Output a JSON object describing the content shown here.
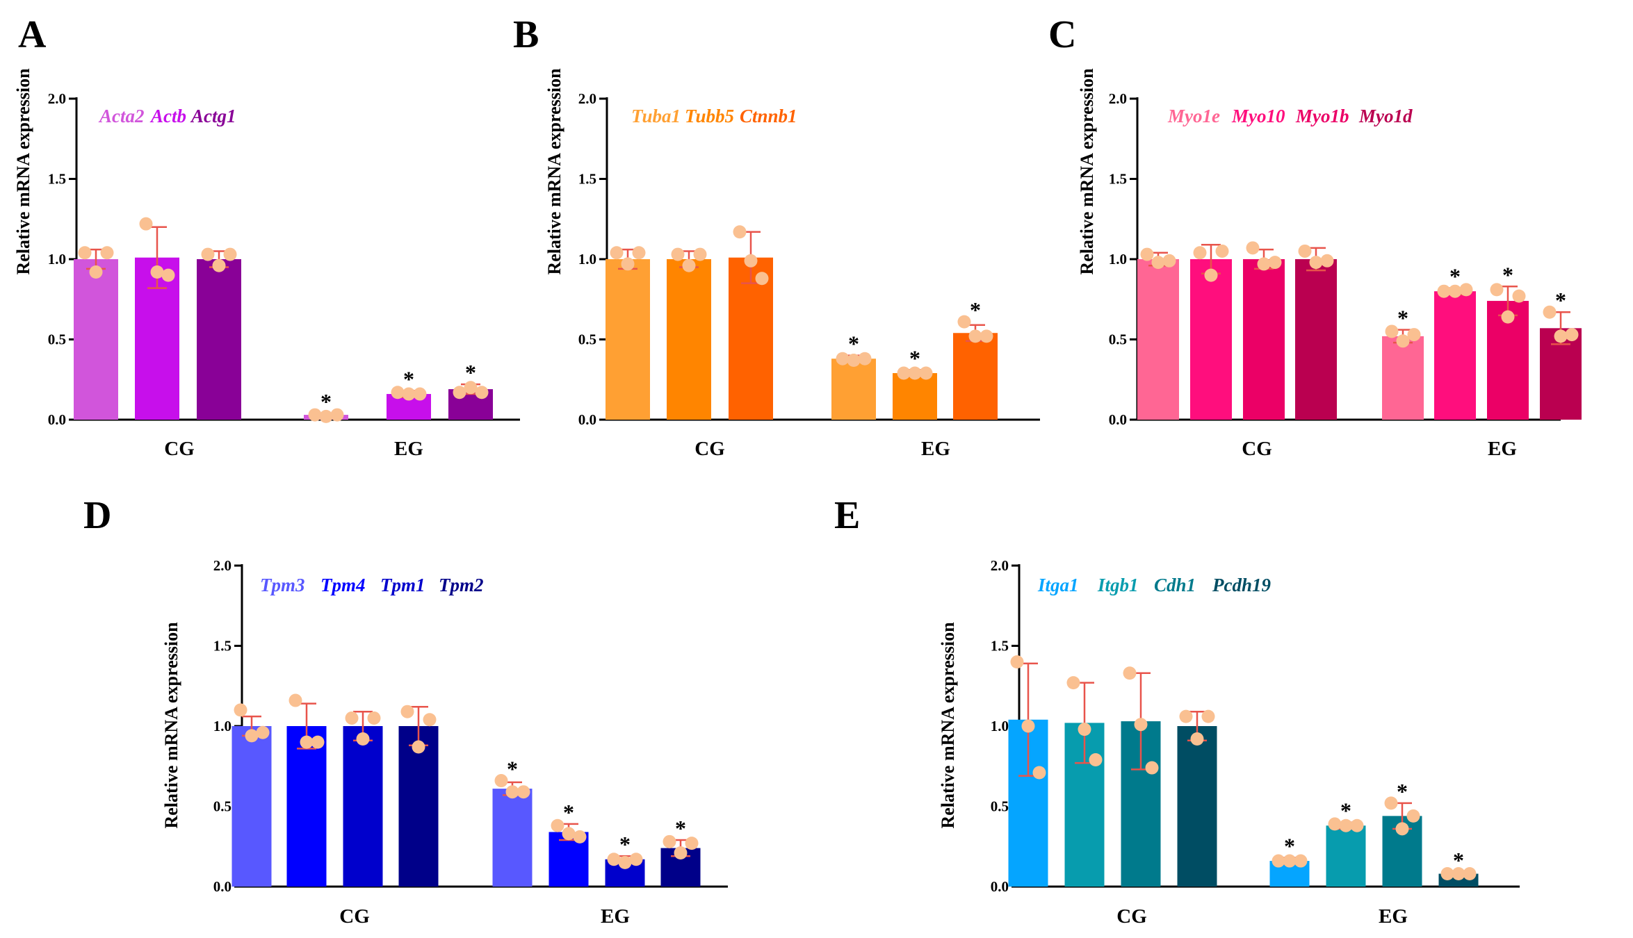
{
  "chart_data": [
    {
      "panel": "A",
      "type": "bar",
      "ylabel": "Relative mRNA expression",
      "ylim": [
        0,
        2.0
      ],
      "yticks": [
        "0.0",
        "0.5",
        "1.0",
        "1.5",
        "2.0"
      ],
      "categories": [
        "CG",
        "EG"
      ],
      "series": [
        {
          "name": "Acta2",
          "color": "#D155DB",
          "values": [
            1.0,
            0.03
          ],
          "errors": [
            0.06,
            0.01
          ],
          "points": [
            [
              1.04,
              0.92,
              1.04
            ],
            [
              0.03,
              0.02,
              0.03
            ]
          ],
          "significant": [
            false,
            true
          ]
        },
        {
          "name": "Actb",
          "color": "#C70FEB",
          "values": [
            1.01,
            0.16
          ],
          "errors": [
            0.19,
            0.02
          ],
          "points": [
            [
              1.22,
              0.92,
              0.9
            ],
            [
              0.17,
              0.16,
              0.16
            ]
          ],
          "significant": [
            false,
            true
          ]
        },
        {
          "name": "Actg1",
          "color": "#890197",
          "values": [
            1.0,
            0.19
          ],
          "errors": [
            0.05,
            0.03
          ],
          "points": [
            [
              1.03,
              0.96,
              1.03
            ],
            [
              0.17,
              0.2,
              0.17
            ]
          ],
          "significant": [
            false,
            true
          ]
        }
      ]
    },
    {
      "panel": "B",
      "type": "bar",
      "ylabel": "Relative mRNA expression",
      "ylim": [
        0,
        2.0
      ],
      "yticks": [
        "0.0",
        "0.5",
        "1.0",
        "1.5",
        "2.0"
      ],
      "categories": [
        "CG",
        "EG"
      ],
      "series": [
        {
          "name": "Tuba1",
          "color": "#FFA033",
          "values": [
            1.0,
            0.38
          ],
          "errors": [
            0.06,
            0.02
          ],
          "points": [
            [
              1.04,
              0.97,
              1.04
            ],
            [
              0.38,
              0.37,
              0.38
            ]
          ],
          "significant": [
            false,
            true
          ]
        },
        {
          "name": "Tubb5",
          "color": "#FF8500",
          "values": [
            1.0,
            0.29
          ],
          "errors": [
            0.05,
            0.02
          ],
          "points": [
            [
              1.03,
              0.96,
              1.03
            ],
            [
              0.29,
              0.29,
              0.29
            ]
          ],
          "significant": [
            false,
            true
          ]
        },
        {
          "name": "Ctnnb1",
          "color": "#FF6200",
          "values": [
            1.01,
            0.54
          ],
          "errors": [
            0.16,
            0.05
          ],
          "points": [
            [
              1.17,
              0.99,
              0.88
            ],
            [
              0.61,
              0.52,
              0.52
            ]
          ],
          "significant": [
            false,
            true
          ]
        }
      ]
    },
    {
      "panel": "C",
      "type": "bar",
      "ylabel": "Relative mRNA expression",
      "ylim": [
        0,
        2.0
      ],
      "yticks": [
        "0.0",
        "0.5",
        "1.0",
        "1.5",
        "2.0"
      ],
      "categories": [
        "CG",
        "EG"
      ],
      "series": [
        {
          "name": "Myo1e",
          "color": "#FF6694",
          "values": [
            1.0,
            0.52
          ],
          "errors": [
            0.04,
            0.04
          ],
          "points": [
            [
              1.03,
              0.98,
              0.99
            ],
            [
              0.55,
              0.49,
              0.53
            ]
          ],
          "significant": [
            false,
            true
          ]
        },
        {
          "name": "Myo10",
          "color": "#FF0E7D",
          "values": [
            1.0,
            0.8
          ],
          "errors": [
            0.09,
            0.02
          ],
          "points": [
            [
              1.04,
              0.9,
              1.05
            ],
            [
              0.8,
              0.8,
              0.81
            ]
          ],
          "significant": [
            false,
            true
          ]
        },
        {
          "name": "Myo1b",
          "color": "#EB0066",
          "values": [
            1.0,
            0.74
          ],
          "errors": [
            0.06,
            0.09
          ],
          "points": [
            [
              1.07,
              0.97,
              0.98
            ],
            [
              0.81,
              0.64,
              0.77
            ]
          ],
          "significant": [
            false,
            true
          ]
        },
        {
          "name": "Myo1d",
          "color": "#BA0050",
          "values": [
            1.0,
            0.57
          ],
          "errors": [
            0.07,
            0.1
          ],
          "points": [
            [
              1.05,
              0.98,
              0.99
            ],
            [
              0.67,
              0.52,
              0.53
            ]
          ],
          "significant": [
            false,
            true
          ]
        }
      ]
    },
    {
      "panel": "D",
      "type": "bar",
      "ylabel": "Relative mRNA expression",
      "ylim": [
        0,
        2.0
      ],
      "yticks": [
        "0.0",
        "0.5",
        "1.0",
        "1.5",
        "2.0"
      ],
      "categories": [
        "CG",
        "EG"
      ],
      "series": [
        {
          "name": "Tpm3",
          "color": "#5858FF",
          "values": [
            1.0,
            0.61
          ],
          "errors": [
            0.06,
            0.04
          ],
          "points": [
            [
              1.1,
              0.94,
              0.96
            ],
            [
              0.66,
              0.59,
              0.59
            ]
          ],
          "significant": [
            false,
            true
          ]
        },
        {
          "name": "Tpm4",
          "color": "#0000FF",
          "values": [
            1.0,
            0.34
          ],
          "errors": [
            0.14,
            0.05
          ],
          "points": [
            [
              1.16,
              0.9,
              0.9
            ],
            [
              0.38,
              0.33,
              0.31
            ]
          ],
          "significant": [
            false,
            true
          ]
        },
        {
          "name": "Tpm1",
          "color": "#0000CC",
          "values": [
            1.0,
            0.17
          ],
          "errors": [
            0.09,
            0.02
          ],
          "points": [
            [
              1.05,
              0.92,
              1.05
            ],
            [
              0.17,
              0.15,
              0.17
            ]
          ],
          "significant": [
            false,
            true
          ]
        },
        {
          "name": "Tpm2",
          "color": "#000089",
          "values": [
            1.0,
            0.24
          ],
          "errors": [
            0.12,
            0.05
          ],
          "points": [
            [
              1.09,
              0.87,
              1.04
            ],
            [
              0.28,
              0.21,
              0.27
            ]
          ],
          "significant": [
            false,
            true
          ]
        }
      ]
    },
    {
      "panel": "E",
      "type": "bar",
      "ylabel": "Relative mRNA expression",
      "ylim": [
        0,
        2.0
      ],
      "yticks": [
        "0.0",
        "0.5",
        "1.0",
        "1.5",
        "2.0"
      ],
      "categories": [
        "CG",
        "EG"
      ],
      "series": [
        {
          "name": "Itga1",
          "color": "#05A5FF",
          "values": [
            1.04,
            0.16
          ],
          "errors": [
            0.35,
            0.02
          ],
          "points": [
            [
              1.4,
              1.0,
              0.71
            ],
            [
              0.16,
              0.16,
              0.16
            ]
          ],
          "significant": [
            false,
            true
          ]
        },
        {
          "name": "Itgb1",
          "color": "#079CAE",
          "values": [
            1.02,
            0.38
          ],
          "errors": [
            0.25,
            0.02
          ],
          "points": [
            [
              1.27,
              0.98,
              0.79
            ],
            [
              0.39,
              0.38,
              0.38
            ]
          ],
          "significant": [
            false,
            true
          ]
        },
        {
          "name": "Cdh1",
          "color": "#007A8C",
          "values": [
            1.03,
            0.44
          ],
          "errors": [
            0.3,
            0.08
          ],
          "points": [
            [
              1.33,
              1.01,
              0.74
            ],
            [
              0.52,
              0.36,
              0.44
            ]
          ],
          "significant": [
            false,
            true
          ]
        },
        {
          "name": "Pcdh19",
          "color": "#004D63",
          "values": [
            1.0,
            0.08
          ],
          "errors": [
            0.09,
            0.01
          ],
          "points": [
            [
              1.06,
              0.92,
              1.06
            ],
            [
              0.08,
              0.08,
              0.08
            ]
          ],
          "significant": [
            false,
            true
          ]
        }
      ]
    }
  ],
  "significance_marker": "*",
  "point_color": "#FAC091",
  "error_color": "#E8544B",
  "axis_color": "#000000"
}
